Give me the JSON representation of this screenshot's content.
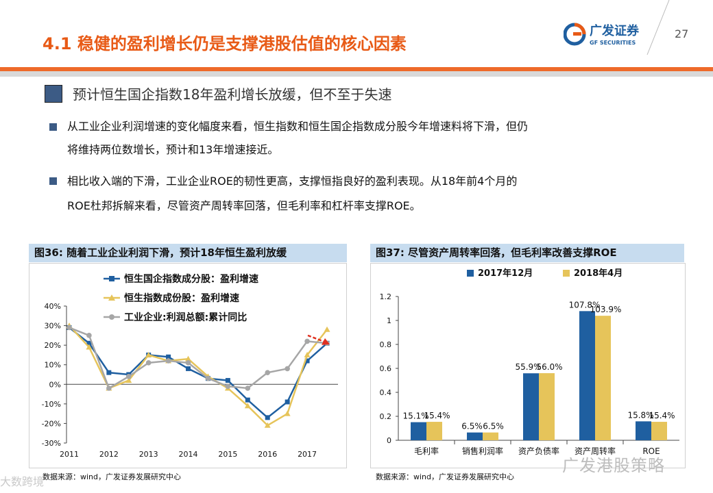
{
  "header": {
    "title": "4.1 稳健的盈利增长仍是支撑港股估值的核心因素",
    "page_number": "27",
    "logo_cn": "广发证券",
    "logo_en": "GF SECURITIES"
  },
  "section": {
    "title": "预计恒生国企指数18年盈利增长放缓，但不至于失速"
  },
  "bullets": [
    {
      "line1": "从工业企业利润增速的变化幅度来看，恒生指数和恒生国企指数成分股今年增速料将下滑，但仍",
      "line2": "将维持两位数增长，预计和13年增速接近。"
    },
    {
      "line1": "相比收入端的下滑，工业企业ROE的韧性更高，支撑恒指良好的盈利表现。从18年前4个月的",
      "line2": "ROE杜邦拆解来看，尽管资产周转率回落，但毛利率和杠杆率支撑ROE。"
    }
  ],
  "figures": [
    {
      "header": "图36:  随着工业企业利润下滑，预计18年恒生盈利放缓",
      "source": "数据来源：wind，广发证券发展研究中心"
    },
    {
      "header": "图37:  尽管资产周转率回落，但毛利率改善支撑ROE",
      "source": "数据来源：wind，广发证券发展研究中心"
    }
  ],
  "watermarks": {
    "right": "广发港股策略",
    "left": "大数跨境"
  },
  "colors": {
    "accent": "#e85a16",
    "blue": "#1f5fa0",
    "gold": "#e6c45a",
    "grey": "#a6a6a6",
    "header_bg": "#c7dcef"
  },
  "chart_data": [
    {
      "type": "line",
      "x": [
        "2011",
        "2011.5",
        "2012",
        "2012.5",
        "2013",
        "2013.5",
        "2014",
        "2014.5",
        "2015",
        "2015.5",
        "2016",
        "2016.5",
        "2017",
        "2017.5"
      ],
      "x_tick_labels": [
        "2011",
        "2012",
        "2013",
        "2014",
        "2015",
        "2016",
        "2017"
      ],
      "y_tick_labels": [
        "40%",
        "30%",
        "20%",
        "10%",
        "0%",
        "-10%",
        "-20%",
        "-30%"
      ],
      "ylim": [
        -30,
        40
      ],
      "series": [
        {
          "name": "恒生国企指数成分股：盈利增速",
          "color": "#1f5fa0",
          "marker": "square",
          "values": [
            29,
            21,
            6,
            5,
            15,
            14,
            8,
            3,
            2,
            -8,
            -17,
            -9,
            12,
            21
          ]
        },
        {
          "name": "恒生指数成份股：盈利增速",
          "color": "#e6c45a",
          "marker": "triangle",
          "values": [
            30,
            19,
            -2,
            2,
            15,
            12,
            13,
            4,
            -2,
            -11,
            -21,
            -15,
            15,
            28
          ]
        },
        {
          "name": "工业企业:利润总额:累计同比",
          "color": "#a6a6a6",
          "marker": "circle",
          "values": [
            29,
            25,
            -2,
            4,
            11,
            12,
            11,
            3,
            -1,
            -2,
            6,
            8,
            22,
            21
          ]
        }
      ],
      "legend_position": "top-left",
      "forecast_arrow": true
    },
    {
      "type": "bar",
      "categories": [
        "毛利率",
        "销售利润率",
        "资产负债率",
        "资产周转率",
        "ROE"
      ],
      "series": [
        {
          "name": "2017年12月",
          "color": "#1f5fa0",
          "values": [
            0.151,
            0.065,
            0.559,
            1.078,
            0.158
          ],
          "labels": [
            "15.1%",
            "6.5%",
            "55.9%",
            "107.8%",
            "15.8%"
          ]
        },
        {
          "name": "2018年4月",
          "color": "#e6c45a",
          "values": [
            0.154,
            0.065,
            0.56,
            1.039,
            0.154
          ],
          "labels": [
            "15.4%",
            "6.5%",
            "56.0%",
            "103.9%",
            "15.4%"
          ]
        }
      ],
      "y_tick_labels": [
        "1.2",
        "1",
        "0.8",
        "0.6",
        "0.4",
        "0.2",
        "0"
      ],
      "ylim": [
        0,
        1.2
      ],
      "legend_position": "top"
    }
  ]
}
